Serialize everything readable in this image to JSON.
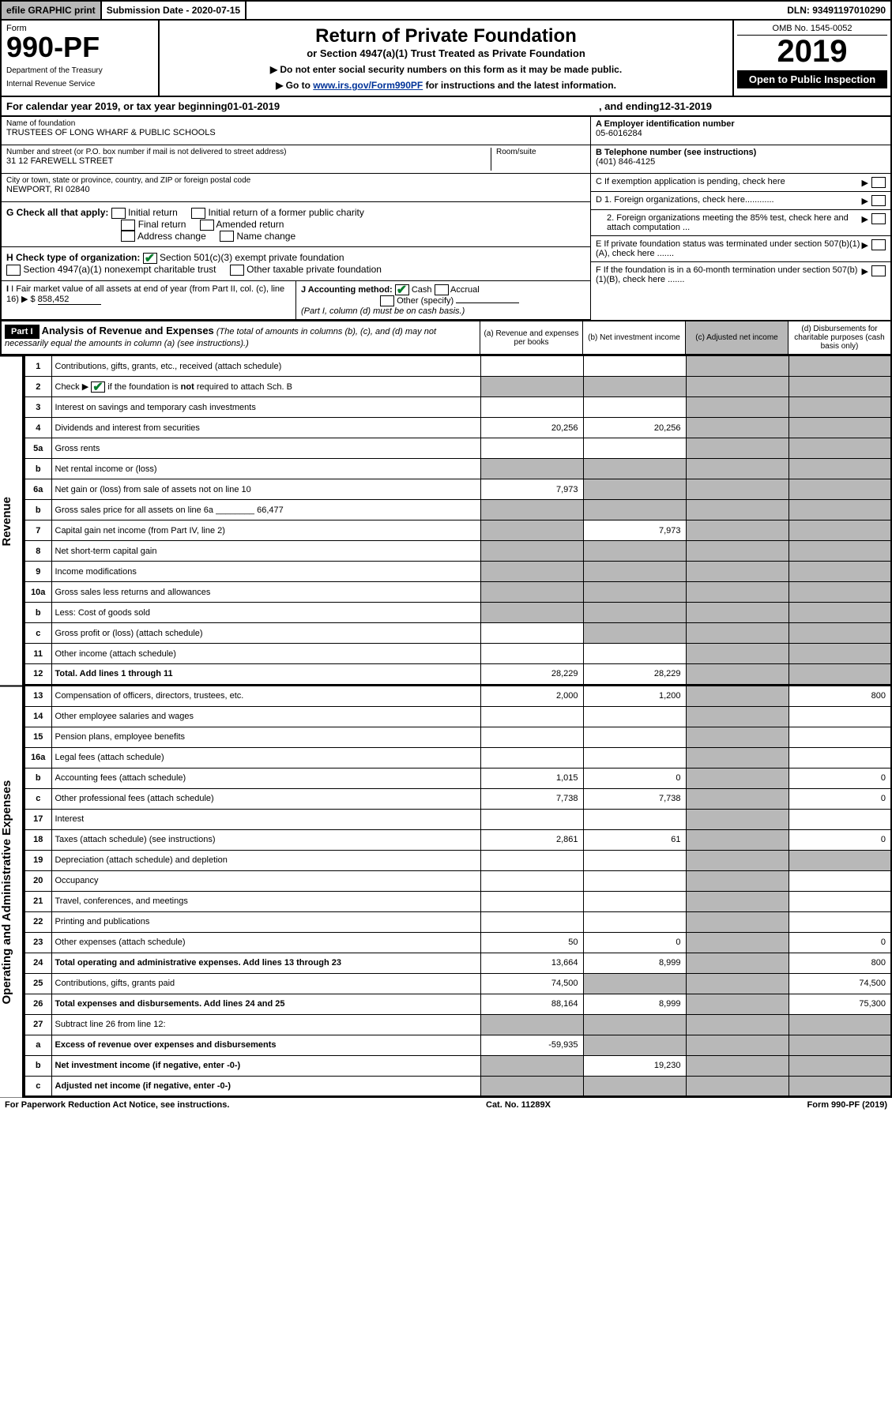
{
  "colors": {
    "link": "#003399",
    "grey_bg": "#b8b8b8",
    "check_green": "#0a7d2e"
  },
  "top_bar": {
    "efile": "efile GRAPHIC print",
    "submission": "Submission Date - 2020-07-15",
    "dln": "DLN: 93491197010290"
  },
  "header": {
    "form_label": "Form",
    "form_number": "990-PF",
    "dept1": "Department of the Treasury",
    "dept2": "Internal Revenue Service",
    "title": "Return of Private Foundation",
    "subtitle": "or Section 4947(a)(1) Trust Treated as Private Foundation",
    "note1": "▶ Do not enter social security numbers on this form as it may be made public.",
    "note2_pre": "▶ Go to ",
    "note2_link": "www.irs.gov/Form990PF",
    "note2_post": " for instructions and the latest information.",
    "omb": "OMB No. 1545-0052",
    "year": "2019",
    "open_public": "Open to Public Inspection"
  },
  "cal_year": {
    "prefix": "For calendar year 2019, or tax year beginning ",
    "begin": "01-01-2019",
    "mid": ", and ending ",
    "end": "12-31-2019"
  },
  "info": {
    "name_label": "Name of foundation",
    "name": "TRUSTEES OF LONG WHARF & PUBLIC SCHOOLS",
    "addr_label": "Number and street (or P.O. box number if mail is not delivered to street address)",
    "addr": "31 12 FAREWELL STREET",
    "room_label": "Room/suite",
    "city_label": "City or town, state or province, country, and ZIP or foreign postal code",
    "city": "NEWPORT, RI  02840",
    "ein_label": "A Employer identification number",
    "ein": "05-6016284",
    "tel_label": "B Telephone number (see instructions)",
    "tel": "(401) 846-4125",
    "c_label": "C If exemption application is pending, check here",
    "d1": "D 1. Foreign organizations, check here............",
    "d2": "2. Foreign organizations meeting the 85% test, check here and attach computation ...",
    "e_label": "E If private foundation status was terminated under section 507(b)(1)(A), check here .......",
    "f_label": "F If the foundation is in a 60-month termination under section 507(b)(1)(B), check here .......",
    "g_label": "G Check all that apply:",
    "g_opts": [
      "Initial return",
      "Initial return of a former public charity",
      "Final return",
      "Amended return",
      "Address change",
      "Name change"
    ],
    "h_label": "H Check type of organization:",
    "h_opt1": "Section 501(c)(3) exempt private foundation",
    "h_opt2": "Section 4947(a)(1) nonexempt charitable trust",
    "h_opt3": "Other taxable private foundation",
    "i_label": "I Fair market value of all assets at end of year (from Part II, col. (c), line 16)",
    "i_val": "858,452",
    "j_label": "J Accounting method:",
    "j_cash": "Cash",
    "j_accrual": "Accrual",
    "j_other": "Other (specify)",
    "j_note": "(Part I, column (d) must be on cash basis.)"
  },
  "part1": {
    "label": "Part I",
    "title": "Analysis of Revenue and Expenses",
    "title_note": "(The total of amounts in columns (b), (c), and (d) may not necessarily equal the amounts in column (a) (see instructions).)",
    "col_a": "(a) Revenue and expenses per books",
    "col_b": "(b) Net investment income",
    "col_c": "(c) Adjusted net income",
    "col_d": "(d) Disbursements for charitable purposes (cash basis only)"
  },
  "sections": {
    "revenue": "Revenue",
    "expenses": "Operating and Administrative Expenses"
  },
  "rows": [
    {
      "n": "1",
      "desc": "Contributions, gifts, grants, etc., received (attach schedule)",
      "a": "",
      "b": "",
      "c": "g",
      "d": "g"
    },
    {
      "n": "2",
      "desc": "Check ▶ ✔ if the foundation is not required to attach Sch. B",
      "a": "g",
      "b": "g",
      "c": "g",
      "d": "g",
      "descHtml": true
    },
    {
      "n": "3",
      "desc": "Interest on savings and temporary cash investments",
      "a": "",
      "b": "",
      "c": "",
      "d": "g"
    },
    {
      "n": "4",
      "desc": "Dividends and interest from securities",
      "a": "20,256",
      "b": "20,256",
      "c": "",
      "d": "g"
    },
    {
      "n": "5a",
      "desc": "Gross rents",
      "a": "",
      "b": "",
      "c": "",
      "d": "g"
    },
    {
      "n": "b",
      "desc": "Net rental income or (loss)",
      "a": "g",
      "b": "g",
      "c": "g",
      "d": "g"
    },
    {
      "n": "6a",
      "desc": "Net gain or (loss) from sale of assets not on line 10",
      "a": "7,973",
      "b": "g",
      "c": "g",
      "d": "g"
    },
    {
      "n": "b",
      "desc": "Gross sales price for all assets on line 6a ________ 66,477",
      "a": "g",
      "b": "g",
      "c": "g",
      "d": "g"
    },
    {
      "n": "7",
      "desc": "Capital gain net income (from Part IV, line 2)",
      "a": "g",
      "b": "7,973",
      "c": "g",
      "d": "g"
    },
    {
      "n": "8",
      "desc": "Net short-term capital gain",
      "a": "g",
      "b": "g",
      "c": "",
      "d": "g"
    },
    {
      "n": "9",
      "desc": "Income modifications",
      "a": "g",
      "b": "g",
      "c": "",
      "d": "g"
    },
    {
      "n": "10a",
      "desc": "Gross sales less returns and allowances",
      "a": "g",
      "b": "g",
      "c": "g",
      "d": "g"
    },
    {
      "n": "b",
      "desc": "Less: Cost of goods sold",
      "a": "g",
      "b": "g",
      "c": "g",
      "d": "g"
    },
    {
      "n": "c",
      "desc": "Gross profit or (loss) (attach schedule)",
      "a": "",
      "b": "g",
      "c": "",
      "d": "g"
    },
    {
      "n": "11",
      "desc": "Other income (attach schedule)",
      "a": "",
      "b": "",
      "c": "",
      "d": "g"
    },
    {
      "n": "12",
      "desc": "Total. Add lines 1 through 11",
      "a": "28,229",
      "b": "28,229",
      "c": "",
      "d": "g",
      "bold": true
    }
  ],
  "exp_rows": [
    {
      "n": "13",
      "desc": "Compensation of officers, directors, trustees, etc.",
      "a": "2,000",
      "b": "1,200",
      "c": "",
      "d": "800"
    },
    {
      "n": "14",
      "desc": "Other employee salaries and wages",
      "a": "",
      "b": "",
      "c": "",
      "d": ""
    },
    {
      "n": "15",
      "desc": "Pension plans, employee benefits",
      "a": "",
      "b": "",
      "c": "",
      "d": ""
    },
    {
      "n": "16a",
      "desc": "Legal fees (attach schedule)",
      "a": "",
      "b": "",
      "c": "",
      "d": ""
    },
    {
      "n": "b",
      "desc": "Accounting fees (attach schedule)",
      "a": "1,015",
      "b": "0",
      "c": "",
      "d": "0"
    },
    {
      "n": "c",
      "desc": "Other professional fees (attach schedule)",
      "a": "7,738",
      "b": "7,738",
      "c": "",
      "d": "0"
    },
    {
      "n": "17",
      "desc": "Interest",
      "a": "",
      "b": "",
      "c": "",
      "d": ""
    },
    {
      "n": "18",
      "desc": "Taxes (attach schedule) (see instructions)",
      "a": "2,861",
      "b": "61",
      "c": "",
      "d": "0"
    },
    {
      "n": "19",
      "desc": "Depreciation (attach schedule) and depletion",
      "a": "",
      "b": "",
      "c": "",
      "d": "g"
    },
    {
      "n": "20",
      "desc": "Occupancy",
      "a": "",
      "b": "",
      "c": "",
      "d": ""
    },
    {
      "n": "21",
      "desc": "Travel, conferences, and meetings",
      "a": "",
      "b": "",
      "c": "",
      "d": ""
    },
    {
      "n": "22",
      "desc": "Printing and publications",
      "a": "",
      "b": "",
      "c": "",
      "d": ""
    },
    {
      "n": "23",
      "desc": "Other expenses (attach schedule)",
      "a": "50",
      "b": "0",
      "c": "",
      "d": "0"
    },
    {
      "n": "24",
      "desc": "Total operating and administrative expenses. Add lines 13 through 23",
      "a": "13,664",
      "b": "8,999",
      "c": "",
      "d": "800",
      "bold": true
    },
    {
      "n": "25",
      "desc": "Contributions, gifts, grants paid",
      "a": "74,500",
      "b": "g",
      "c": "g",
      "d": "74,500"
    },
    {
      "n": "26",
      "desc": "Total expenses and disbursements. Add lines 24 and 25",
      "a": "88,164",
      "b": "8,999",
      "c": "",
      "d": "75,300",
      "bold": true
    },
    {
      "n": "27",
      "desc": "Subtract line 26 from line 12:",
      "a": "g",
      "b": "g",
      "c": "g",
      "d": "g"
    },
    {
      "n": "a",
      "desc": "Excess of revenue over expenses and disbursements",
      "a": "-59,935",
      "b": "g",
      "c": "g",
      "d": "g",
      "bold": true
    },
    {
      "n": "b",
      "desc": "Net investment income (if negative, enter -0-)",
      "a": "g",
      "b": "19,230",
      "c": "g",
      "d": "g",
      "bold": true
    },
    {
      "n": "c",
      "desc": "Adjusted net income (if negative, enter -0-)",
      "a": "g",
      "b": "g",
      "c": "",
      "d": "g",
      "bold": true
    }
  ],
  "footer": {
    "left": "For Paperwork Reduction Act Notice, see instructions.",
    "center": "Cat. No. 11289X",
    "right": "Form 990-PF (2019)"
  }
}
